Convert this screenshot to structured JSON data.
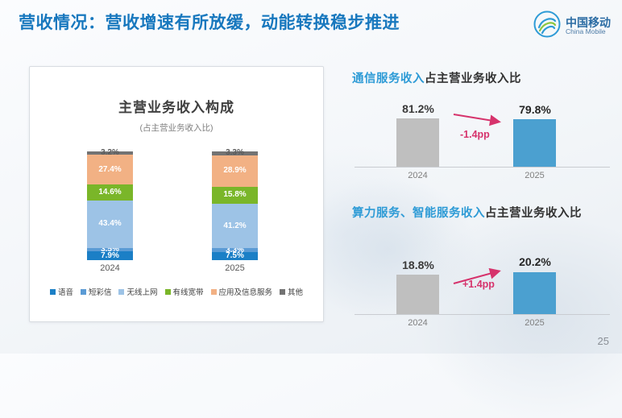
{
  "slide": {
    "title": "营收情况：营收增速有所放缓，动能转换稳步推进",
    "page_number": "25",
    "title_color": "#1878BE",
    "accent_color": "#D6336C"
  },
  "logo": {
    "name_cn": "中国移动",
    "name_en": "China Mobile"
  },
  "left_chart": {
    "title": "主营业务收入构成",
    "subtitle": "(占主营业务收入比)"
  },
  "right_top": {
    "heading_highlight": "通信服务收入",
    "heading_rest": "占主营业务收入比"
  },
  "right_bottom": {
    "heading_highlight": "算力服务、智能服务收入",
    "heading_rest": "占主营业务收入比"
  },
  "chart_data": [
    {
      "type": "bar",
      "subtype": "stacked",
      "title": "主营业务收入构成",
      "subtitle": "(占主营业务收入比)",
      "categories": [
        "2024",
        "2025"
      ],
      "unit": "%",
      "ylim": [
        0,
        100
      ],
      "legend_position": "bottom",
      "series": [
        {
          "name": "语音",
          "values": [
            7.9,
            7.5
          ],
          "color": "#1B7FC6",
          "label_color": "#ffffff"
        },
        {
          "name": "短彩信",
          "values": [
            3.5,
            3.3
          ],
          "color": "#5B9BD5",
          "label_color": "#ffffff"
        },
        {
          "name": "无线上网",
          "values": [
            43.4,
            41.2
          ],
          "color": "#9DC3E6",
          "label_color": "#ffffff"
        },
        {
          "name": "有线宽带",
          "values": [
            14.6,
            15.8
          ],
          "color": "#7AB629",
          "label_color": "#ffffff"
        },
        {
          "name": "应用及信息服务",
          "values": [
            27.4,
            28.9
          ],
          "color": "#F2B184",
          "label_color": "#ffffff"
        },
        {
          "name": "其他",
          "values": [
            3.2,
            3.3
          ],
          "color": "#737373",
          "label_color": "#595959"
        }
      ]
    },
    {
      "type": "bar",
      "title": "通信服务收入占主营业务收入比",
      "categories": [
        "2024",
        "2025"
      ],
      "values": [
        81.2,
        79.8
      ],
      "value_labels": [
        "81.2%",
        "79.8%"
      ],
      "colors": [
        "#BFBFBF",
        "#4BA0D0"
      ],
      "annotation": "-1.4pp",
      "unit": "%"
    },
    {
      "type": "bar",
      "title": "算力服务、智能服务收入占主营业务收入比",
      "categories": [
        "2024",
        "2025"
      ],
      "values": [
        18.8,
        20.2
      ],
      "value_labels": [
        "18.8%",
        "20.2%"
      ],
      "colors": [
        "#BFBFBF",
        "#4BA0D0"
      ],
      "annotation": "+1.4pp",
      "unit": "%"
    }
  ]
}
